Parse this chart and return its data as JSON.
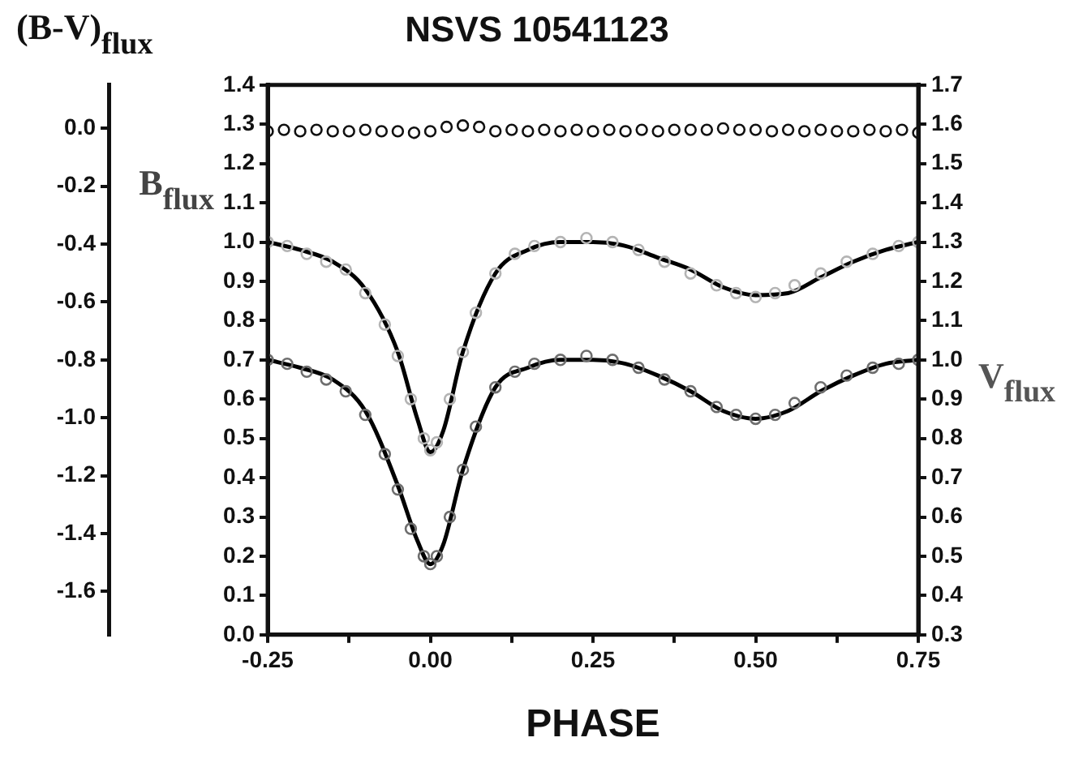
{
  "chart_data": {
    "type": "scatter",
    "title": "NSVS 10541123",
    "xlabel": "PHASE",
    "ylabel": "B$_{flux}$",
    "y2label": "V$_{flux}$",
    "y3label": "(B-V)$_{flux}$",
    "xlim": [
      -0.25,
      0.75
    ],
    "xticks": [
      {
        "value": -0.25,
        "label": "-0.25"
      },
      {
        "value": -0.125,
        "label": null
      },
      {
        "value": 0,
        "label": "0.00"
      },
      {
        "value": 0.125,
        "label": null
      },
      {
        "value": 0.25,
        "label": "0.25"
      },
      {
        "value": 0.375,
        "label": null
      },
      {
        "value": 0.5,
        "label": "0.50"
      },
      {
        "value": 0.625,
        "label": null
      },
      {
        "value": 0.75,
        "label": "0.75"
      }
    ],
    "ylim": [
      0,
      1.4
    ],
    "yticks": [
      {
        "value": 0,
        "label": "0.0"
      },
      {
        "value": 0.1,
        "label": "0.1"
      },
      {
        "value": 0.2,
        "label": "0.2"
      },
      {
        "value": 0.3,
        "label": "0.3"
      },
      {
        "value": 0.4,
        "label": "0.4"
      },
      {
        "value": 0.5,
        "label": "0.5"
      },
      {
        "value": 0.6,
        "label": "0.6"
      },
      {
        "value": 0.7,
        "label": "0.7"
      },
      {
        "value": 0.8,
        "label": "0.8"
      },
      {
        "value": 0.9,
        "label": "0.9"
      },
      {
        "value": 1.0,
        "label": "1.0"
      },
      {
        "value": 1.1,
        "label": "1.1"
      },
      {
        "value": 1.2,
        "label": "1.2"
      },
      {
        "value": 1.3,
        "label": "1.3"
      },
      {
        "value": 1.4,
        "label": "1.4"
      }
    ],
    "y2lim": [
      0.3,
      1.7
    ],
    "y2ticks": [
      {
        "value": 0.3,
        "label": "0.3"
      },
      {
        "value": 0.4,
        "label": "0.4"
      },
      {
        "value": 0.5,
        "label": "0.5"
      },
      {
        "value": 0.6,
        "label": "0.6"
      },
      {
        "value": 0.7,
        "label": "0.7"
      },
      {
        "value": 0.8,
        "label": "0.8"
      },
      {
        "value": 0.9,
        "label": "0.9"
      },
      {
        "value": 1.0,
        "label": "1.0"
      },
      {
        "value": 1.1,
        "label": "1.1"
      },
      {
        "value": 1.2,
        "label": "1.2"
      },
      {
        "value": 1.3,
        "label": "1.3"
      },
      {
        "value": 1.4,
        "label": "1.4"
      },
      {
        "value": 1.5,
        "label": "1.5"
      },
      {
        "value": 1.6,
        "label": "1.6"
      },
      {
        "value": 1.7,
        "label": "1.7"
      }
    ],
    "y3lim": [
      -1.75,
      0.15
    ],
    "y3ticks": [
      {
        "value": 0,
        "label": "0.0"
      },
      {
        "value": -0.2,
        "label": "-0.2"
      },
      {
        "value": -0.4,
        "label": "-0.4"
      },
      {
        "value": -0.6,
        "label": "-0.6"
      },
      {
        "value": -0.8,
        "label": "-0.8"
      },
      {
        "value": -1.0,
        "label": "-1.0"
      },
      {
        "value": -1.2,
        "label": "-1.2"
      },
      {
        "value": -1.4,
        "label": "-1.4"
      },
      {
        "value": -1.6,
        "label": "-1.6"
      }
    ],
    "grid": false,
    "legend": false,
    "marker": "circle",
    "series": [
      {
        "axis": "y3",
        "color": "#111111",
        "x": [
          -0.25,
          -0.225,
          -0.2,
          -0.175,
          -0.15,
          -0.125,
          -0.1,
          -0.075,
          -0.05,
          -0.025,
          0,
          0.025,
          0.05,
          0.075,
          0.1,
          0.125,
          0.15,
          0.175,
          0.2,
          0.225,
          0.25,
          0.275,
          0.3,
          0.325,
          0.35,
          0.375,
          0.4,
          0.425,
          0.45,
          0.475,
          0.5,
          0.525,
          0.55,
          0.575,
          0.6,
          0.625,
          0.65,
          0.675,
          0.7,
          0.725,
          0.75
        ],
        "values": [
          -0.01,
          -0.005,
          -0.01,
          -0.005,
          -0.01,
          -0.01,
          -0.005,
          -0.01,
          -0.01,
          -0.015,
          -0.01,
          0.005,
          0.01,
          0.005,
          -0.01,
          -0.005,
          -0.01,
          -0.005,
          -0.01,
          -0.005,
          -0.01,
          -0.005,
          -0.01,
          -0.005,
          -0.01,
          -0.005,
          -0.005,
          -0.005,
          0,
          -0.005,
          -0.005,
          -0.01,
          -0.005,
          -0.01,
          -0.005,
          -0.01,
          -0.01,
          -0.005,
          -0.01,
          -0.005,
          -0.015
        ]
      },
      {
        "axis": "y",
        "color": "#b4b4b4",
        "x": [
          -0.25,
          -0.22,
          -0.19,
          -0.16,
          -0.13,
          -0.1,
          -0.07,
          -0.05,
          -0.03,
          -0.01,
          0,
          0.01,
          0.03,
          0.05,
          0.07,
          0.1,
          0.13,
          0.16,
          0.2,
          0.24,
          0.28,
          0.32,
          0.36,
          0.4,
          0.44,
          0.47,
          0.5,
          0.53,
          0.56,
          0.6,
          0.64,
          0.68,
          0.72,
          0.75
        ],
        "values": [
          1.0,
          0.99,
          0.97,
          0.95,
          0.93,
          0.87,
          0.79,
          0.71,
          0.6,
          0.5,
          0.47,
          0.49,
          0.6,
          0.72,
          0.82,
          0.92,
          0.97,
          0.99,
          1.0,
          1.01,
          1.0,
          0.98,
          0.95,
          0.92,
          0.89,
          0.87,
          0.86,
          0.87,
          0.89,
          0.92,
          0.95,
          0.97,
          0.99,
          1.0
        ]
      },
      {
        "axis": "y2",
        "color": "#6e6e6e",
        "x": [
          -0.25,
          -0.22,
          -0.19,
          -0.16,
          -0.13,
          -0.1,
          -0.07,
          -0.05,
          -0.03,
          -0.01,
          0,
          0.01,
          0.03,
          0.05,
          0.07,
          0.1,
          0.13,
          0.16,
          0.2,
          0.24,
          0.28,
          0.32,
          0.36,
          0.4,
          0.44,
          0.47,
          0.5,
          0.53,
          0.56,
          0.6,
          0.64,
          0.68,
          0.72,
          0.75
        ],
        "values": [
          1.0,
          0.99,
          0.97,
          0.95,
          0.92,
          0.86,
          0.76,
          0.67,
          0.57,
          0.5,
          0.48,
          0.5,
          0.6,
          0.72,
          0.83,
          0.93,
          0.97,
          0.99,
          1.0,
          1.01,
          1.0,
          0.98,
          0.95,
          0.92,
          0.88,
          0.86,
          0.85,
          0.86,
          0.89,
          0.93,
          0.96,
          0.98,
          0.99,
          1.0
        ]
      },
      {
        "type": "line",
        "axis": "y",
        "color": "#000000",
        "marker": "none",
        "line_style": "solid",
        "x": [
          -0.25,
          -0.2,
          -0.15,
          -0.1,
          -0.05,
          -0.02,
          0,
          0.02,
          0.05,
          0.1,
          0.15,
          0.2,
          0.25,
          0.3,
          0.35,
          0.4,
          0.45,
          0.5,
          0.55,
          0.6,
          0.65,
          0.7,
          0.75
        ],
        "values": [
          1.0,
          0.98,
          0.95,
          0.88,
          0.72,
          0.55,
          0.465,
          0.52,
          0.72,
          0.92,
          0.98,
          1.0,
          1.0,
          0.99,
          0.96,
          0.93,
          0.885,
          0.865,
          0.87,
          0.91,
          0.95,
          0.98,
          1.0
        ]
      },
      {
        "type": "line",
        "axis": "y2",
        "color": "#000000",
        "marker": "none",
        "line_style": "solid",
        "x": [
          -0.25,
          -0.2,
          -0.15,
          -0.1,
          -0.05,
          -0.02,
          0,
          0.02,
          0.05,
          0.1,
          0.15,
          0.2,
          0.25,
          0.3,
          0.35,
          0.4,
          0.45,
          0.5,
          0.55,
          0.6,
          0.65,
          0.7,
          0.75
        ],
        "values": [
          1.0,
          0.98,
          0.95,
          0.87,
          0.68,
          0.54,
          0.48,
          0.53,
          0.72,
          0.93,
          0.98,
          1.0,
          1.0,
          0.99,
          0.96,
          0.92,
          0.87,
          0.85,
          0.87,
          0.92,
          0.96,
          0.99,
          1.0
        ]
      }
    ]
  }
}
